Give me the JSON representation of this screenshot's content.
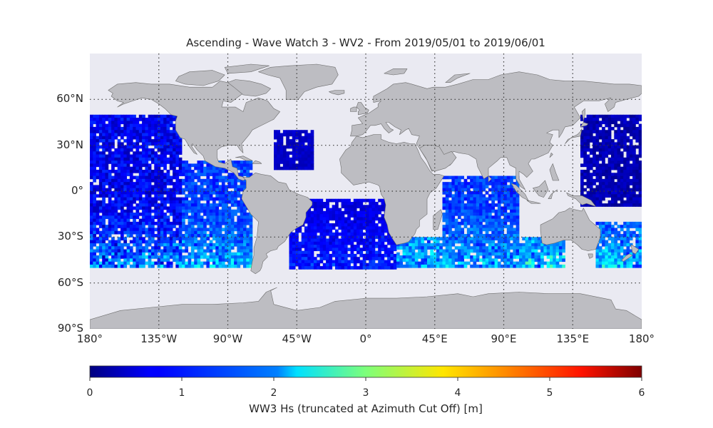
{
  "title": "Ascending - Wave Watch 3 - WV2 - From 2019/05/01 to 2019/06/01",
  "map": {
    "projection": "equirectangular",
    "lon_range": [
      -180,
      180
    ],
    "lat_range": [
      -90,
      90
    ],
    "land_color": "#bdbdc2",
    "ocean_color": "#eaeaf2",
    "coastline_color": "#6d6d6d",
    "grid": true,
    "grid_style": "dotted",
    "lat_ticks": [
      {
        "value": 60,
        "label": "60°N"
      },
      {
        "value": 30,
        "label": "30°N"
      },
      {
        "value": 0,
        "label": "0°"
      },
      {
        "value": -30,
        "label": "30°S"
      },
      {
        "value": -60,
        "label": "60°S"
      },
      {
        "value": -90,
        "label": "90°S"
      }
    ],
    "lon_ticks": [
      {
        "value": -180,
        "label": "180°"
      },
      {
        "value": -135,
        "label": "135°W"
      },
      {
        "value": -90,
        "label": "90°W"
      },
      {
        "value": -45,
        "label": "45°W"
      },
      {
        "value": 0,
        "label": "0°"
      },
      {
        "value": 45,
        "label": "45°E"
      },
      {
        "value": 90,
        "label": "90°E"
      },
      {
        "value": 135,
        "label": "135°E"
      },
      {
        "value": 180,
        "label": "180°"
      }
    ]
  },
  "colorbar": {
    "colormap": "jet",
    "range": [
      0,
      6
    ],
    "ticks": [
      {
        "value": 0,
        "label": "0"
      },
      {
        "value": 1,
        "label": "1"
      },
      {
        "value": 2,
        "label": "2"
      },
      {
        "value": 3,
        "label": "3"
      },
      {
        "value": 4,
        "label": "4"
      },
      {
        "value": 5,
        "label": "5"
      },
      {
        "value": 6,
        "label": "6"
      }
    ],
    "label": "WW3 Hs (truncated at Azimuth Cut Off) [m]"
  },
  "chart_data": {
    "type": "heatmap",
    "variable": "WW3 Hs",
    "units": "m",
    "lat_coverage": [
      -50,
      50
    ],
    "regions": [
      {
        "lon": [
          -180,
          -120
        ],
        "lat": [
          -50,
          50
        ],
        "hs": [
          0.3,
          2.5
        ]
      },
      {
        "lon": [
          -120,
          -75
        ],
        "lat": [
          -50,
          20
        ],
        "hs": [
          0.8,
          2.6
        ]
      },
      {
        "lon": [
          -60,
          -35
        ],
        "lat": [
          15,
          40
        ],
        "hs": [
          0.3,
          1.0
        ]
      },
      {
        "lon": [
          -50,
          20
        ],
        "lat": [
          -50,
          -5
        ],
        "hs": [
          0.4,
          1.4
        ]
      },
      {
        "lon": [
          20,
          50
        ],
        "lat": [
          -50,
          -30
        ],
        "hs": [
          0.8,
          2.8
        ]
      },
      {
        "lon": [
          50,
          100
        ],
        "lat": [
          -50,
          10
        ],
        "hs": [
          0.8,
          2.6
        ]
      },
      {
        "lon": [
          100,
          130
        ],
        "lat": [
          -50,
          -30
        ],
        "hs": [
          0.8,
          3.0
        ]
      },
      {
        "lon": [
          140,
          180
        ],
        "lat": [
          -10,
          50
        ],
        "hs": [
          0.1,
          1.2
        ]
      },
      {
        "lon": [
          150,
          180
        ],
        "lat": [
          -50,
          -20
        ],
        "hs": [
          0.8,
          2.8
        ]
      }
    ]
  }
}
